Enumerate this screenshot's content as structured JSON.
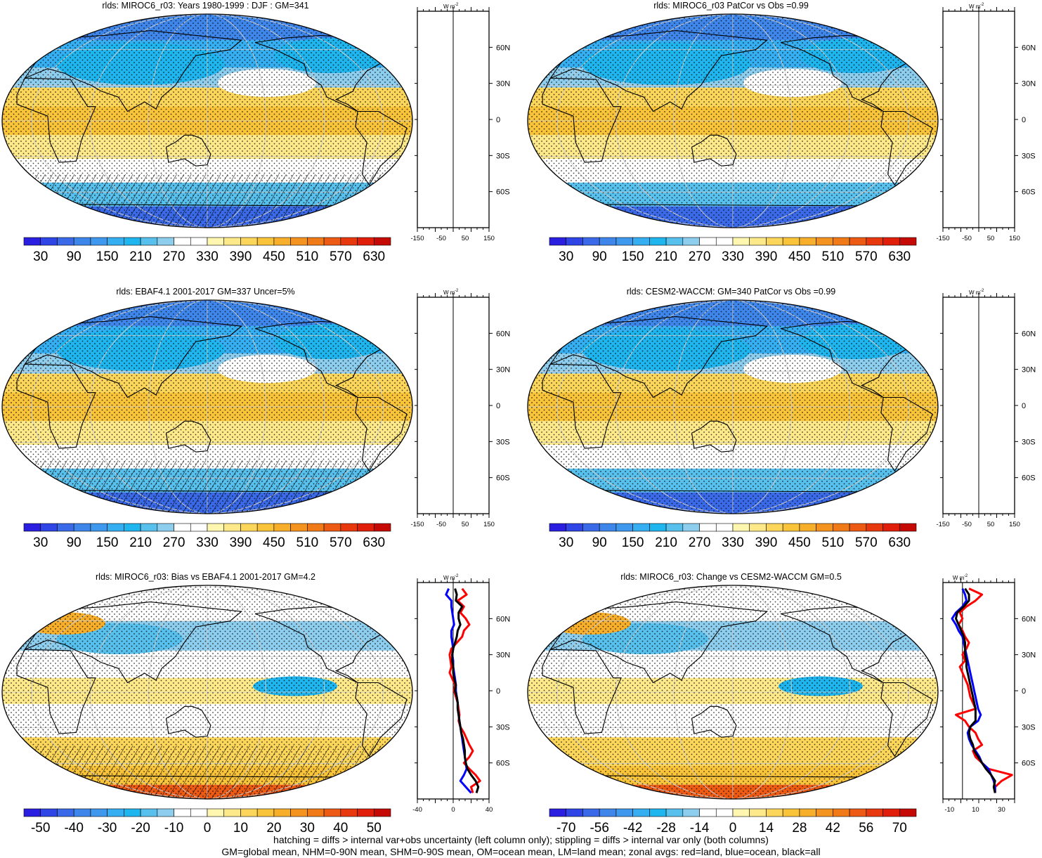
{
  "footer": {
    "line1": "hatching = diffs > internal var+obs uncertainty (left column only); stippling = diffs > internal var only (both columns)",
    "line2": "GM=global mean, NHM=0-90N mean, SHM=0-90S mean, OM=ocean mean, LM=land mean; zonal avgs: red=land, blue=ocean, black=all"
  },
  "chart_data": [
    {
      "type": "heatmap",
      "title": "rlds: MIROC6_r03: Years 1980-1999 : DJF : GM=341",
      "field": "absolute",
      "hatching": true,
      "colorbar": {
        "ticks": [
          "30",
          "90",
          "150",
          "210",
          "270",
          "330",
          "390",
          "450",
          "510",
          "570",
          "630"
        ],
        "range": [
          0,
          660
        ],
        "levels": 22
      },
      "zonal": {
        "xticks": [
          "-150",
          "-50",
          "50",
          "150"
        ],
        "xlim": [
          -150,
          150
        ],
        "units_label": "W m",
        "lat_ticks": [
          "60N",
          "30N",
          "0",
          "30S",
          "60S"
        ],
        "series": []
      }
    },
    {
      "type": "heatmap",
      "title": "rlds: MIROC6_r03 PatCor vs Obs =0.99",
      "field": "absolute",
      "hatching": false,
      "colorbar": {
        "ticks": [
          "30",
          "90",
          "150",
          "210",
          "270",
          "330",
          "390",
          "450",
          "510",
          "570",
          "630"
        ],
        "range": [
          0,
          660
        ],
        "levels": 22
      },
      "zonal": {
        "xticks": [
          "-150",
          "-50",
          "50",
          "150"
        ],
        "xlim": [
          -150,
          150
        ],
        "units_label": "W m",
        "lat_ticks": [
          "60N",
          "30N",
          "0",
          "30S",
          "60S"
        ],
        "series": []
      }
    },
    {
      "type": "heatmap",
      "title": "rlds: EBAF4.1 2001-2017 GM=337 Uncer=5%",
      "field": "absolute",
      "hatching": true,
      "colorbar": {
        "ticks": [
          "30",
          "90",
          "150",
          "210",
          "270",
          "330",
          "390",
          "450",
          "510",
          "570",
          "630"
        ],
        "range": [
          0,
          660
        ],
        "levels": 22
      },
      "zonal": {
        "xticks": [
          "-150",
          "-50",
          "50",
          "150"
        ],
        "xlim": [
          -150,
          150
        ],
        "units_label": "W m",
        "lat_ticks": [
          "60N",
          "30N",
          "0",
          "30S",
          "60S"
        ],
        "series": []
      }
    },
    {
      "type": "heatmap",
      "title": "rlds: CESM2-WACCM: GM=340 PatCor vs Obs =0.99",
      "field": "absolute",
      "hatching": false,
      "colorbar": {
        "ticks": [
          "30",
          "90",
          "150",
          "210",
          "270",
          "330",
          "390",
          "450",
          "510",
          "570",
          "630"
        ],
        "range": [
          0,
          660
        ],
        "levels": 22
      },
      "zonal": {
        "xticks": [
          "-150",
          "-50",
          "50",
          "150"
        ],
        "xlim": [
          -150,
          150
        ],
        "units_label": "W m",
        "lat_ticks": [
          "60N",
          "30N",
          "0",
          "30S",
          "60S"
        ],
        "series": []
      }
    },
    {
      "type": "heatmap",
      "title": "rlds: MIROC6_r03: Bias vs EBAF4.1 2001-2017 GM=4.2",
      "field": "diff",
      "hatching": true,
      "colorbar": {
        "ticks": [
          "-50",
          "-40",
          "-30",
          "-20",
          "-10",
          "0",
          "10",
          "20",
          "30",
          "40",
          "50"
        ],
        "range": [
          -55,
          55
        ],
        "levels": 22
      },
      "zonal": {
        "xticks": [
          "-40",
          "0",
          "40"
        ],
        "xlim": [
          -40,
          40
        ],
        "units_label": "W m",
        "lat_ticks": [
          "60N",
          "30N",
          "0",
          "30S",
          "60S"
        ],
        "series": [
          {
            "color": "#ff0000",
            "lat": [
              85,
              80,
              75,
              70,
              65,
              60,
              55,
              50,
              45,
              40,
              35,
              30,
              25,
              20,
              15,
              10,
              5,
              0,
              -5,
              -10,
              -15,
              -20,
              -25,
              -30,
              -35,
              -40,
              -45,
              -50,
              -55,
              -60,
              -65,
              -70,
              -75,
              -80,
              -85
            ],
            "values": [
              10,
              15,
              5,
              12,
              8,
              14,
              18,
              12,
              10,
              4,
              -2,
              -4,
              -3,
              -2,
              -4,
              -1,
              2,
              1,
              3,
              5,
              6,
              7,
              6,
              8,
              12,
              15,
              18,
              22,
              18,
              12,
              18,
              25,
              30,
              20,
              22
            ]
          },
          {
            "color": "#0000ff",
            "lat": [
              85,
              80,
              75,
              70,
              65,
              60,
              55,
              50,
              45,
              40,
              35,
              30,
              25,
              20,
              15,
              10,
              5,
              0,
              -5,
              -10,
              -15,
              -20,
              -25,
              -30,
              -35,
              -40,
              -45,
              -50,
              -55,
              -60,
              -65,
              -70,
              -75,
              -80,
              -85
            ],
            "values": [
              -5,
              -8,
              -2,
              -2,
              -1,
              0,
              1,
              -2,
              -2,
              -1,
              0,
              -1,
              0,
              0,
              1,
              2,
              3,
              3,
              4,
              5,
              5,
              6,
              7,
              8,
              9,
              10,
              11,
              12,
              13,
              14,
              15,
              12,
              8,
              14,
              20
            ]
          },
          {
            "color": "#000000",
            "lat": [
              85,
              80,
              75,
              70,
              65,
              60,
              55,
              50,
              45,
              40,
              35,
              30,
              25,
              20,
              15,
              10,
              5,
              0,
              -5,
              -10,
              -15,
              -20,
              -25,
              -30,
              -35,
              -40,
              -45,
              -50,
              -55,
              -60,
              -65,
              -70,
              -75,
              -80,
              -85
            ],
            "values": [
              2,
              4,
              3,
              10,
              6,
              6,
              8,
              5,
              4,
              2,
              0,
              -1,
              -1,
              0,
              0,
              1,
              3,
              2,
              4,
              5,
              5,
              6,
              7,
              8,
              9,
              11,
              12,
              13,
              13,
              14,
              16,
              20,
              25,
              28,
              26
            ]
          }
        ]
      }
    },
    {
      "type": "heatmap",
      "title": "rlds: MIROC6_r03: Change vs CESM2-WACCM GM=0.5",
      "field": "diff",
      "hatching": false,
      "colorbar": {
        "ticks": [
          "-70",
          "-56",
          "-42",
          "-28",
          "-14",
          "0",
          "14",
          "28",
          "42",
          "56",
          "70"
        ],
        "range": [
          -77,
          77
        ],
        "levels": 22
      },
      "zonal": {
        "xticks": [
          "-10",
          "10",
          "30"
        ],
        "xlim": [
          -15,
          40
        ],
        "units_label": "W m",
        "lat_ticks": [
          "60N",
          "30N",
          "0",
          "30S",
          "60S"
        ],
        "series": [
          {
            "color": "#ff0000",
            "lat": [
              85,
              80,
              75,
              70,
              65,
              60,
              55,
              50,
              45,
              40,
              35,
              30,
              25,
              20,
              15,
              10,
              5,
              0,
              -5,
              -10,
              -15,
              -20,
              -25,
              -30,
              -35,
              -40,
              -45,
              -50,
              -55,
              -60,
              -65,
              -70,
              -75,
              -80,
              -85
            ],
            "values": [
              5,
              15,
              10,
              3,
              -2,
              0,
              -3,
              0,
              2,
              5,
              3,
              0,
              2,
              -2,
              0,
              2,
              4,
              5,
              6,
              8,
              10,
              -5,
              2,
              5,
              10,
              12,
              15,
              8,
              10,
              15,
              20,
              38,
              30,
              25,
              25
            ]
          },
          {
            "color": "#0000ff",
            "lat": [
              85,
              80,
              75,
              70,
              65,
              60,
              55,
              50,
              45,
              40,
              35,
              30,
              25,
              20,
              15,
              10,
              5,
              0,
              -5,
              -10,
              -15,
              -20,
              -25,
              -30,
              -35,
              -40,
              -45,
              -50,
              -55,
              -60,
              -65,
              -70,
              -75,
              -80,
              -85
            ],
            "values": [
              0,
              2,
              3,
              0,
              -5,
              -8,
              -5,
              -3,
              0,
              1,
              2,
              3,
              4,
              5,
              6,
              7,
              8,
              9,
              10,
              11,
              12,
              14,
              12,
              6,
              4,
              5,
              7,
              10,
              13,
              15,
              20,
              22,
              24,
              25,
              25
            ]
          },
          {
            "color": "#000000",
            "lat": [
              85,
              80,
              75,
              70,
              65,
              60,
              55,
              50,
              45,
              40,
              35,
              30,
              25,
              20,
              15,
              10,
              5,
              0,
              -5,
              -10,
              -15,
              -20,
              -25,
              -30,
              -35,
              -40,
              -45,
              -50,
              -55,
              -60,
              -65,
              -70,
              -75,
              -80,
              -85
            ],
            "values": [
              2,
              5,
              5,
              1,
              -4,
              -5,
              -3,
              -1,
              1,
              2,
              2,
              2,
              3,
              3,
              4,
              5,
              6,
              7,
              8,
              9,
              10,
              10,
              10,
              6,
              5,
              6,
              8,
              9,
              12,
              15,
              18,
              22,
              25,
              24,
              25
            ]
          }
        ]
      }
    }
  ]
}
